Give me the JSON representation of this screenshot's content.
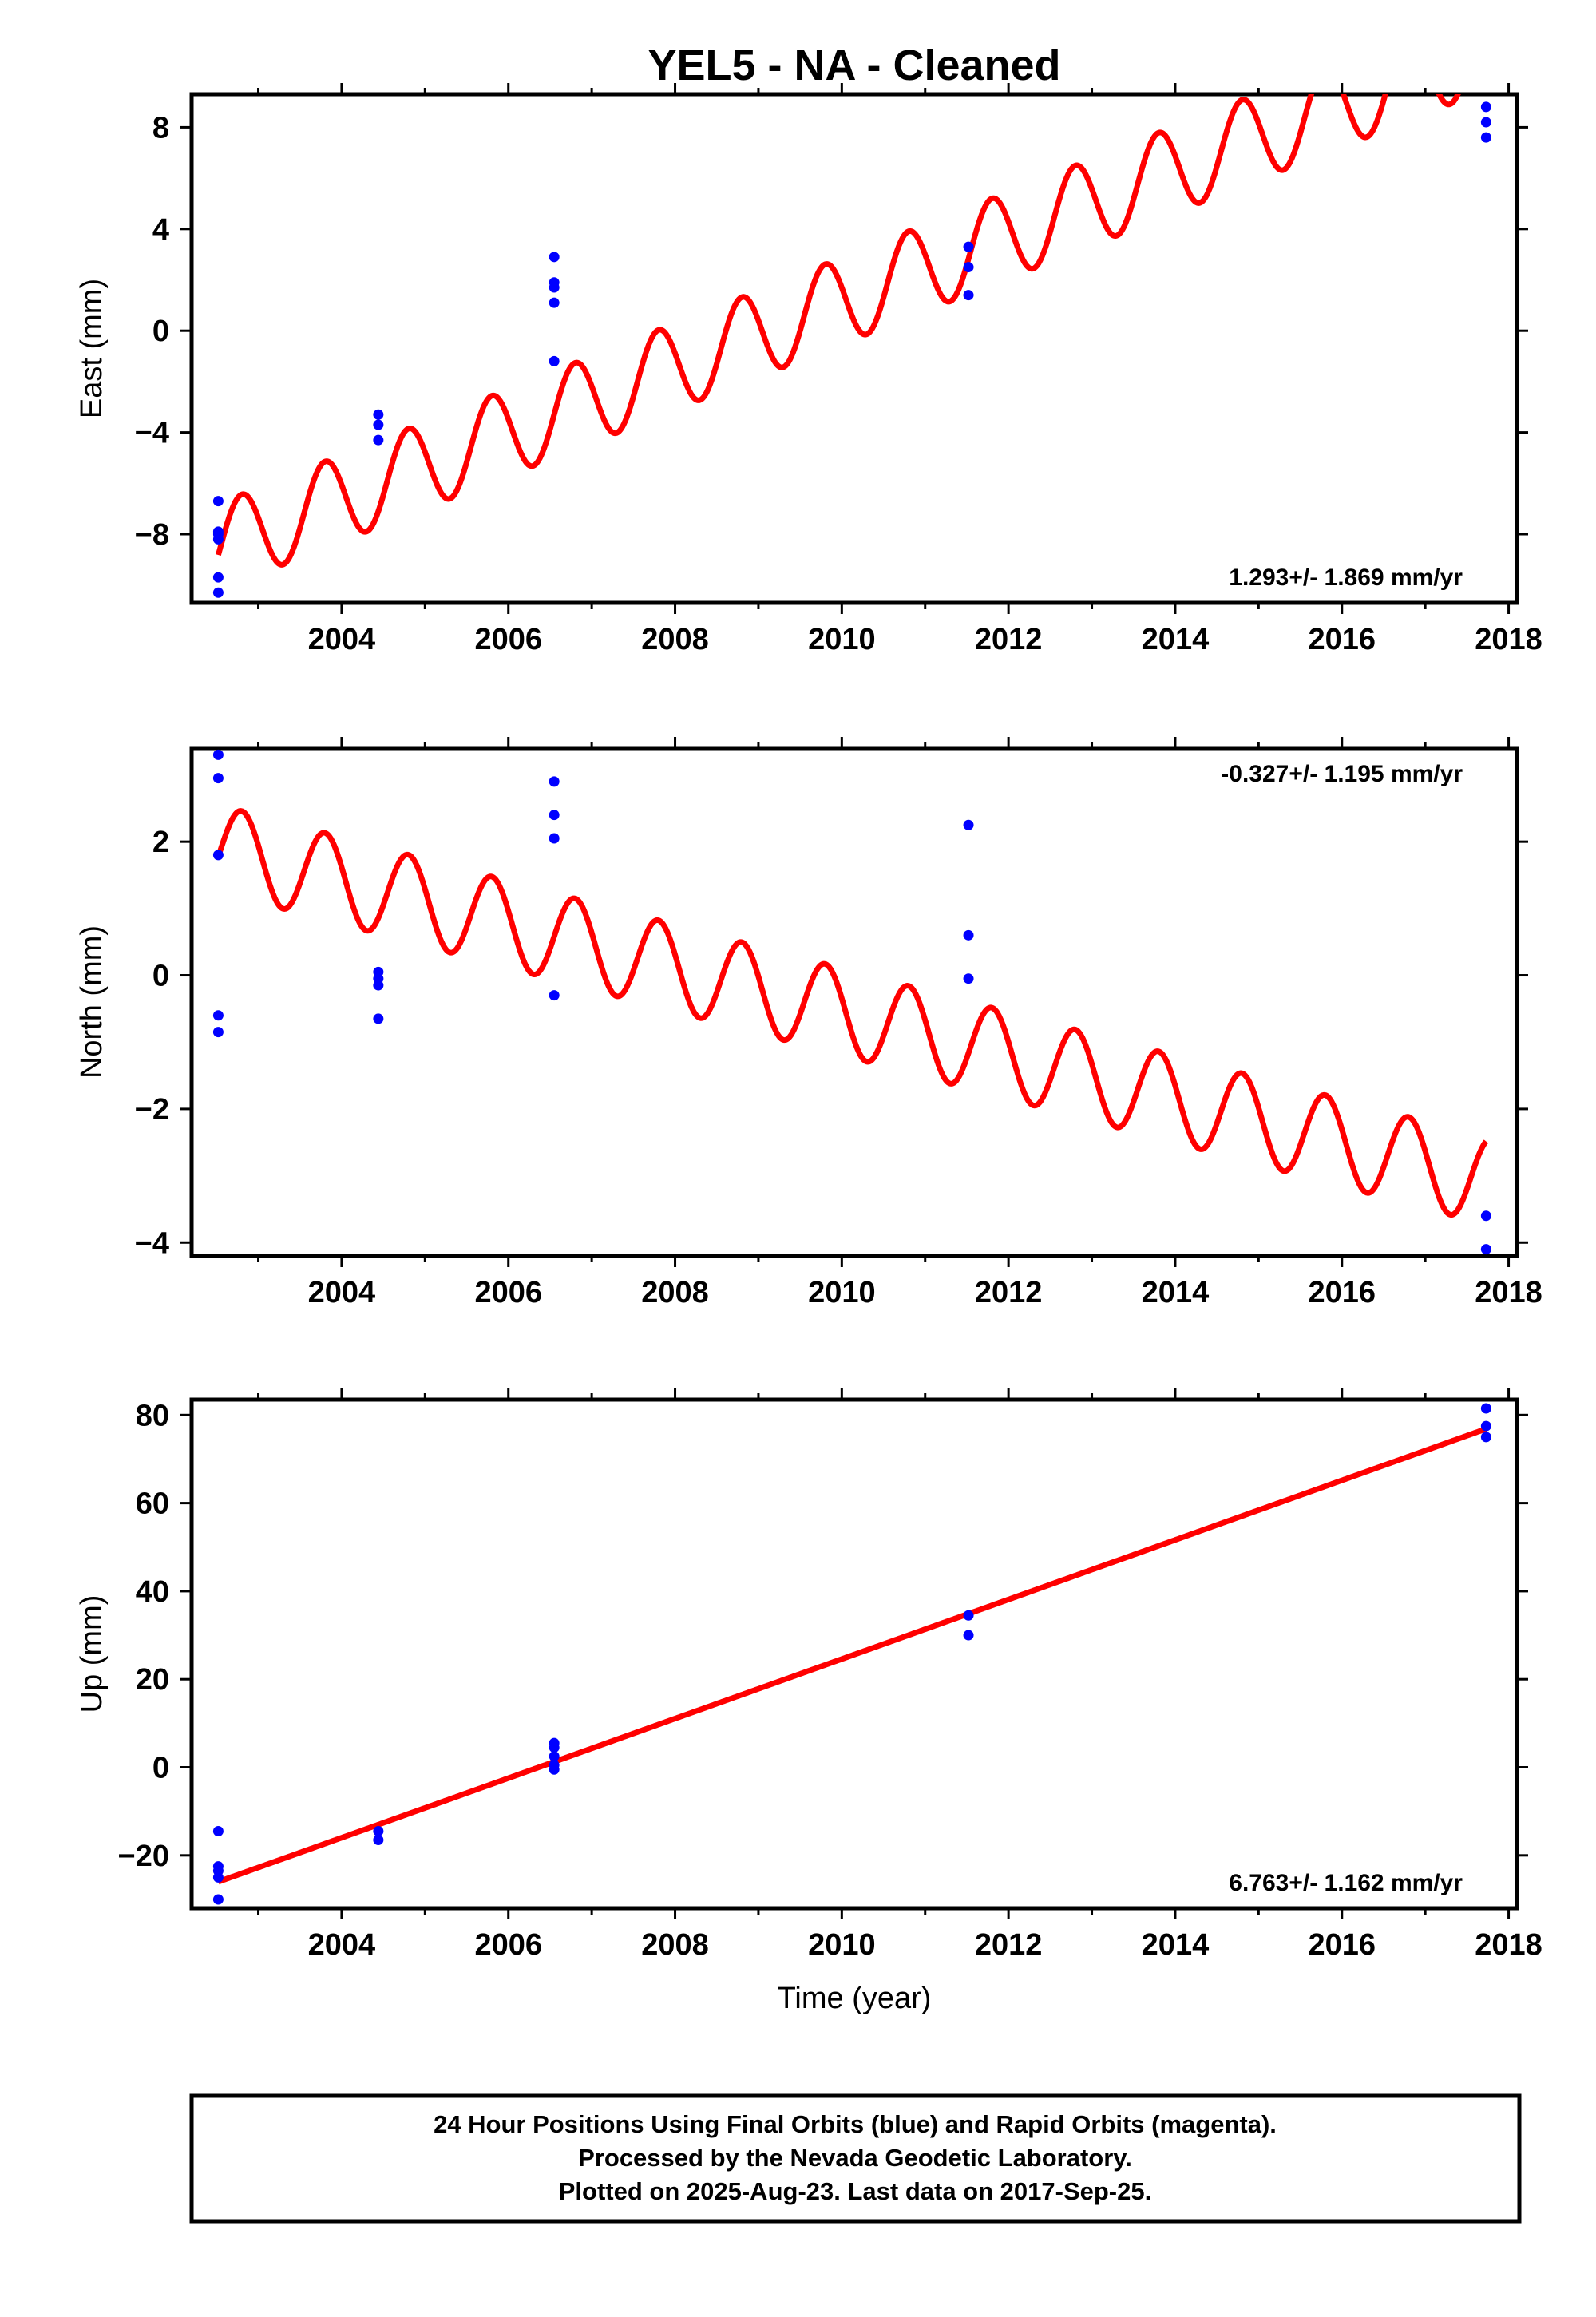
{
  "title": "YEL5  - NA - Cleaned",
  "colors": {
    "fit": "#ff0000",
    "final_orbits": "#0000ff",
    "frame": "#000000"
  },
  "chart_data": [
    {
      "type": "scatter",
      "ylabel": "East (mm)",
      "xlabel": "",
      "xlim": [
        2002.2,
        2018.1
      ],
      "ylim": [
        -10.7,
        9.3
      ],
      "yticks": [
        8,
        4,
        0,
        -4,
        -8
      ],
      "ytick_labels": [
        "8",
        "4",
        "0",
        "−4",
        "−8"
      ],
      "xticks": [
        2004,
        2006,
        2008,
        2010,
        2012,
        2014,
        2016,
        2018
      ],
      "xtick_labels": [
        "2004",
        "2006",
        "2008",
        "2010",
        "2012",
        "2014",
        "2016",
        "2018"
      ],
      "rate_text": "1.293+/- 1.869 mm/yr",
      "rate_position": "bottom-right",
      "fit": {
        "name": "",
        "start": 2002.52,
        "end": 2017.73,
        "y_at_start": -8.5,
        "slope": 1.293,
        "amplitude": 1.7,
        "period": 1.0,
        "phase": 0.55
      },
      "series": [
        {
          "name": "",
          "x": [
            2002.52,
            2002.52,
            2002.52,
            2002.52,
            2002.52,
            2002.52,
            2004.44,
            2004.44,
            2004.44,
            2006.55,
            2006.55,
            2006.55,
            2006.55,
            2006.55,
            2011.52,
            2011.52,
            2011.52,
            2017.73,
            2017.73,
            2017.73
          ],
          "y": [
            -6.7,
            -7.9,
            -8.2,
            -9.7,
            -10.3,
            -8.0,
            -3.3,
            -3.7,
            -4.3,
            2.9,
            1.9,
            1.7,
            1.1,
            -1.2,
            3.3,
            2.5,
            1.4,
            8.8,
            8.2,
            7.6
          ]
        }
      ]
    },
    {
      "type": "scatter",
      "ylabel": "North (mm)",
      "xlabel": "",
      "xlim": [
        2002.2,
        2018.1
      ],
      "ylim": [
        -4.2,
        3.4
      ],
      "yticks": [
        2,
        0,
        -2,
        -4
      ],
      "ytick_labels": [
        "2",
        "0",
        "−2",
        "−4"
      ],
      "xticks": [
        2004,
        2006,
        2008,
        2010,
        2012,
        2014,
        2016,
        2018
      ],
      "xtick_labels": [
        "2004",
        "2006",
        "2008",
        "2010",
        "2012",
        "2014",
        "2016",
        "2018"
      ],
      "rate_text": "-0.327+/- 1.195 mm/yr",
      "rate_position": "top-right",
      "fit": {
        "name": "",
        "start": 2002.52,
        "end": 2017.73,
        "y_at_start": 1.9,
        "slope": -0.327,
        "amplitude": 0.65,
        "period": 1.0,
        "phase": 0.55
      },
      "series": [
        {
          "name": "",
          "x": [
            2002.52,
            2002.52,
            2002.52,
            2002.52,
            2002.52,
            2004.44,
            2004.44,
            2004.44,
            2004.44,
            2006.55,
            2006.55,
            2006.55,
            2006.55,
            2011.52,
            2011.52,
            2011.52,
            2017.73,
            2017.73
          ],
          "y": [
            3.3,
            2.95,
            1.8,
            -0.6,
            -0.85,
            0.05,
            -0.05,
            -0.15,
            -0.65,
            2.9,
            2.4,
            2.05,
            -0.3,
            2.25,
            0.6,
            -0.05,
            -3.6,
            -4.1
          ]
        }
      ]
    },
    {
      "type": "scatter",
      "ylabel": "Up (mm)",
      "xlabel": "Time (year)",
      "xlim": [
        2002.2,
        2018.1
      ],
      "ylim": [
        -32,
        83.5
      ],
      "yticks": [
        80,
        60,
        40,
        20,
        0,
        -20
      ],
      "ytick_labels": [
        "80",
        "60",
        "40",
        "20",
        "0",
        "−20"
      ],
      "xticks": [
        2004,
        2006,
        2008,
        2010,
        2012,
        2014,
        2016,
        2018
      ],
      "xtick_labels": [
        "2004",
        "2006",
        "2008",
        "2010",
        "2012",
        "2014",
        "2016",
        "2018"
      ],
      "rate_text": "6.763+/- 1.162 mm/yr",
      "rate_position": "bottom-right",
      "fit": {
        "name": "",
        "start": 2002.52,
        "end": 2017.73,
        "y_at_start": -26,
        "slope": 6.763,
        "amplitude": 0,
        "period": 1.0,
        "phase": 0
      },
      "series": [
        {
          "name": "",
          "x": [
            2002.52,
            2002.52,
            2002.52,
            2002.52,
            2002.52,
            2004.44,
            2004.44,
            2006.55,
            2006.55,
            2006.55,
            2006.55,
            2006.55,
            2011.52,
            2011.52,
            2017.73,
            2017.73,
            2017.73
          ],
          "y": [
            -14.5,
            -22.5,
            -23.5,
            -25,
            -30,
            -14.5,
            -16.5,
            5.5,
            4.5,
            2.5,
            0.5,
            -0.5,
            34.5,
            30,
            81.5,
            77.5,
            75
          ]
        }
      ]
    }
  ],
  "footer": {
    "line1": "24 Hour Positions Using Final Orbits (blue) and Rapid Orbits (magenta).",
    "line2": "Processed by the Nevada Geodetic Laboratory.",
    "line3": "Plotted on 2025-Aug-23. Last data on 2017-Sep-25."
  }
}
